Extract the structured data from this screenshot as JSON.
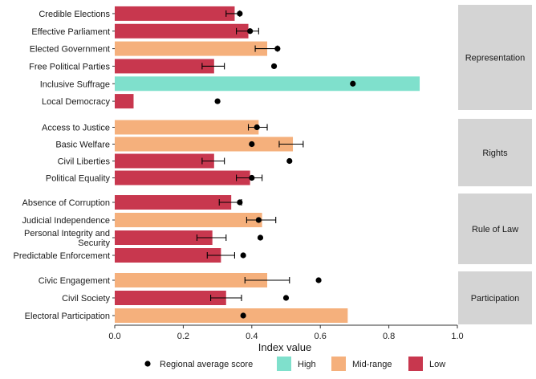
{
  "chart_data": {
    "type": "bar",
    "orientation": "horizontal",
    "xlabel": "Index value",
    "xlim": [
      0,
      1
    ],
    "xticks": [
      "0.0",
      "0.2",
      "0.4",
      "0.6",
      "0.8",
      "1.0"
    ],
    "legend": {
      "placement": "bottom",
      "dot_label": "Regional average score",
      "items": [
        {
          "label": "High",
          "color": "#7fe0cc"
        },
        {
          "label": "Mid-range",
          "color": "#f5b07c"
        },
        {
          "label": "Low",
          "color": "#c8374e"
        }
      ]
    },
    "panels": [
      {
        "strip": "Representation",
        "rows": [
          {
            "label": "Credible Elections",
            "value": 0.35,
            "level": "Low",
            "dot": 0.365,
            "err": [
              0.325,
              0.365
            ]
          },
          {
            "label": "Effective Parliament",
            "value": 0.39,
            "level": "Low",
            "dot": 0.395,
            "err": [
              0.355,
              0.42
            ]
          },
          {
            "label": "Elected Government",
            "value": 0.445,
            "level": "Mid-range",
            "dot": 0.475,
            "err": [
              0.41,
              0.475
            ]
          },
          {
            "label": "Free Political Parties",
            "value": 0.29,
            "level": "Low",
            "dot": 0.465,
            "err": [
              0.255,
              0.32
            ]
          },
          {
            "label": "Inclusive Suffrage",
            "value": 0.89,
            "level": "High",
            "dot": 0.695,
            "err": null
          },
          {
            "label": "Local Democracy",
            "value": 0.055,
            "level": "Low",
            "dot": 0.3,
            "err": null
          }
        ]
      },
      {
        "strip": "Rights",
        "rows": [
          {
            "label": "Access to Justice",
            "value": 0.42,
            "level": "Mid-range",
            "dot": 0.415,
            "err": [
              0.39,
              0.445
            ]
          },
          {
            "label": "Basic Welfare",
            "value": 0.52,
            "level": "Mid-range",
            "dot": 0.4,
            "err": [
              0.48,
              0.55
            ]
          },
          {
            "label": "Civil Liberties",
            "value": 0.29,
            "level": "Low",
            "dot": 0.51,
            "err": [
              0.255,
              0.32
            ]
          },
          {
            "label": "Political Equality",
            "value": 0.395,
            "level": "Low",
            "dot": 0.4,
            "err": [
              0.355,
              0.43
            ]
          }
        ]
      },
      {
        "strip": "Rule of Law",
        "rows": [
          {
            "label": "Absence of Corruption",
            "value": 0.34,
            "level": "Low",
            "dot": 0.365,
            "err": [
              0.305,
              0.37
            ]
          },
          {
            "label": "Judicial Independence",
            "value": 0.43,
            "level": "Mid-range",
            "dot": 0.42,
            "err": [
              0.385,
              0.47
            ]
          },
          {
            "label": "Personal Integrity and Security",
            "value": 0.285,
            "level": "Low",
            "dot": 0.425,
            "err": [
              0.24,
              0.325
            ]
          },
          {
            "label": "Predictable Enforcement",
            "value": 0.31,
            "level": "Low",
            "dot": 0.375,
            "err": [
              0.27,
              0.35
            ]
          }
        ]
      },
      {
        "strip": "Participation",
        "rows": [
          {
            "label": "Civic Engagement",
            "value": 0.445,
            "level": "Mid-range",
            "dot": 0.595,
            "err": [
              0.38,
              0.51
            ]
          },
          {
            "label": "Civil Society",
            "value": 0.325,
            "level": "Low",
            "dot": 0.5,
            "err": [
              0.28,
              0.37
            ]
          },
          {
            "label": "Electoral Participation",
            "value": 0.68,
            "level": "Mid-range",
            "dot": 0.375,
            "err": null
          }
        ]
      }
    ]
  }
}
